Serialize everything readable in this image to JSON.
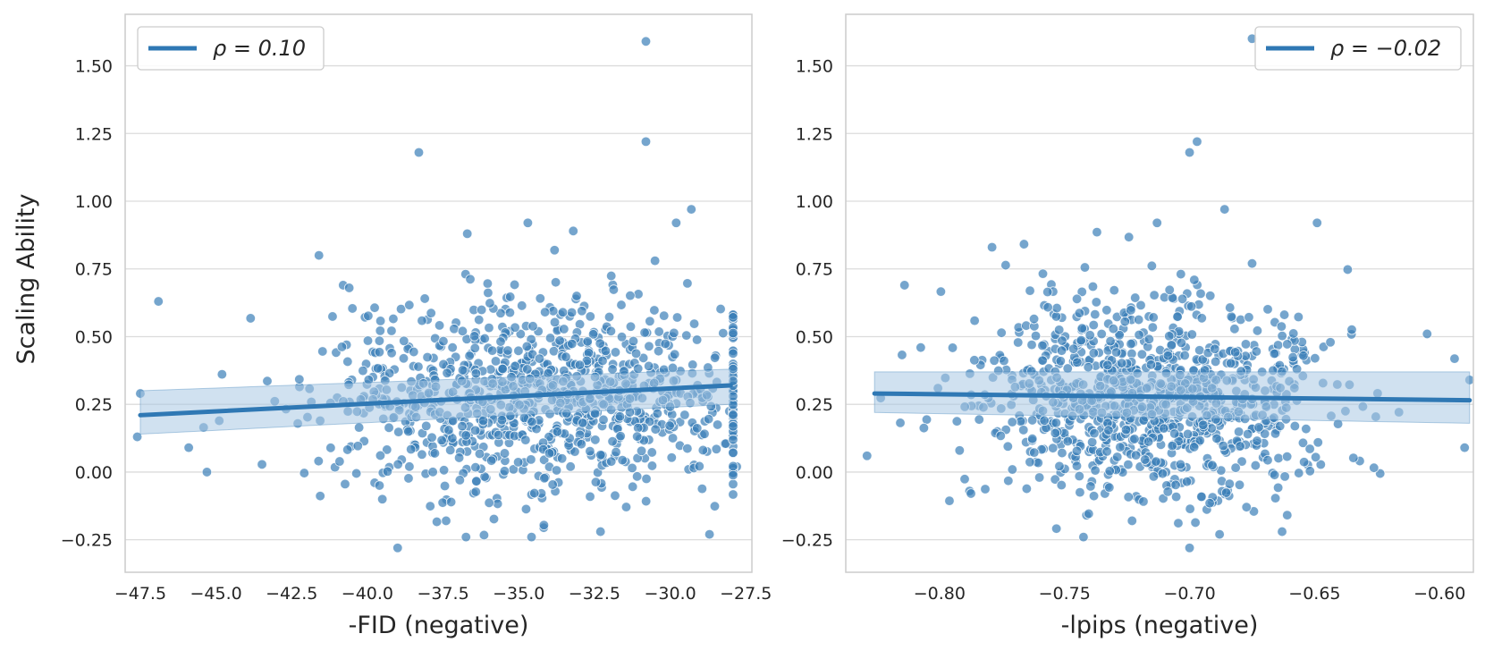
{
  "figure": {
    "ylabel": "Scaling Ability"
  },
  "colors": {
    "point": "#3a7fb8",
    "line": "#2f78b4",
    "band": "#a9c9e4",
    "grid": "#dcdcdc",
    "spine": "#cccccc"
  },
  "chart_data": [
    {
      "type": "scatter",
      "xlabel": "-FID (negative)",
      "ylabel": "Scaling Ability",
      "xlim": [
        -48.0,
        -27.3
      ],
      "ylim": [
        -0.37,
        1.69
      ],
      "xticks": [
        -47.5,
        -45.0,
        -42.5,
        -40.0,
        -37.5,
        -35.0,
        -32.5,
        -30.0,
        -27.5
      ],
      "xtick_labels": [
        "−47.5",
        "−45.0",
        "−42.5",
        "−40.0",
        "−37.5",
        "−35.0",
        "−32.5",
        "−30.0",
        "−27.5"
      ],
      "yticks": [
        -0.25,
        0.0,
        0.25,
        0.5,
        0.75,
        1.0,
        1.25,
        1.5
      ],
      "ytick_labels": [
        "−0.25",
        "0.00",
        "0.25",
        "0.50",
        "0.75",
        "1.00",
        "1.25",
        "1.50"
      ],
      "grid": true,
      "legend": {
        "label": "ρ = 0.10",
        "placement": "top-left"
      },
      "regression": {
        "x": [
          -47.5,
          -28.0
        ],
        "y": [
          0.21,
          0.32
        ]
      },
      "ci_band": {
        "x": [
          -47.5,
          -28.0
        ],
        "upper": [
          0.3,
          0.38
        ],
        "lower": [
          0.14,
          0.25
        ]
      },
      "distribution": {
        "x_center": -34.0,
        "x_spread": 3.8,
        "y_center": 0.27,
        "y_spread": 0.18,
        "count": 1000,
        "seed": 7
      },
      "points": [
        {
          "x": -30.8,
          "y": 1.59
        },
        {
          "x": -38.3,
          "y": 1.18
        },
        {
          "x": -30.8,
          "y": 1.22
        },
        {
          "x": -29.3,
          "y": 0.97
        },
        {
          "x": -29.8,
          "y": 0.92
        },
        {
          "x": -34.7,
          "y": 0.92
        },
        {
          "x": -33.2,
          "y": 0.89
        },
        {
          "x": -46.9,
          "y": 0.63
        },
        {
          "x": -41.6,
          "y": 0.8
        },
        {
          "x": -47.6,
          "y": 0.13
        },
        {
          "x": -47.5,
          "y": 0.29
        },
        {
          "x": -45.9,
          "y": 0.09
        },
        {
          "x": -45.3,
          "y": 0.0
        },
        {
          "x": -39.0,
          "y": -0.28
        },
        {
          "x": -37.4,
          "y": -0.18
        },
        {
          "x": -32.3,
          "y": -0.22
        },
        {
          "x": -28.7,
          "y": -0.23
        },
        {
          "x": -27.8,
          "y": 0.02
        },
        {
          "x": -27.9,
          "y": 0.5
        },
        {
          "x": -40.8,
          "y": 0.69
        },
        {
          "x": -40.6,
          "y": 0.68
        },
        {
          "x": -36.7,
          "y": 0.88
        },
        {
          "x": -30.5,
          "y": 0.78
        }
      ]
    },
    {
      "type": "scatter",
      "xlabel": "-lpips (negative)",
      "ylabel": "",
      "xlim": [
        -0.8375,
        -0.5865
      ],
      "ylim": [
        -0.37,
        1.69
      ],
      "xticks": [
        -0.8,
        -0.75,
        -0.7,
        -0.65,
        -0.6
      ],
      "xtick_labels": [
        "−0.80",
        "−0.75",
        "−0.70",
        "−0.65",
        "−0.60"
      ],
      "yticks": [
        -0.25,
        0.0,
        0.25,
        0.5,
        0.75,
        1.0,
        1.25,
        1.5
      ],
      "ytick_labels": [
        "−0.25",
        "0.00",
        "0.25",
        "0.50",
        "0.75",
        "1.00",
        "1.25",
        "1.50"
      ],
      "grid": true,
      "legend": {
        "label": "ρ = −0.02",
        "placement": "top-right"
      },
      "regression": {
        "x": [
          -0.826,
          -0.588
        ],
        "y": [
          0.29,
          0.265
        ]
      },
      "ci_band": {
        "x": [
          -0.826,
          -0.588
        ],
        "upper": [
          0.37,
          0.37
        ],
        "lower": [
          0.22,
          0.18
        ]
      },
      "distribution": {
        "x_center": -0.714,
        "x_spread": 0.035,
        "y_center": 0.27,
        "y_spread": 0.18,
        "count": 1000,
        "seed": 13
      },
      "points": [
        {
          "x": -0.675,
          "y": 1.6
        },
        {
          "x": -0.7,
          "y": 1.18
        },
        {
          "x": -0.697,
          "y": 1.22
        },
        {
          "x": -0.686,
          "y": 0.97
        },
        {
          "x": -0.713,
          "y": 0.92
        },
        {
          "x": -0.649,
          "y": 0.92
        },
        {
          "x": -0.814,
          "y": 0.69
        },
        {
          "x": -0.829,
          "y": 0.06
        },
        {
          "x": -0.605,
          "y": 0.51
        },
        {
          "x": -0.588,
          "y": 0.34
        },
        {
          "x": -0.59,
          "y": 0.09
        },
        {
          "x": -0.7,
          "y": -0.28
        },
        {
          "x": -0.723,
          "y": -0.18
        },
        {
          "x": -0.688,
          "y": -0.23
        },
        {
          "x": -0.663,
          "y": -0.22
        },
        {
          "x": -0.779,
          "y": 0.83
        },
        {
          "x": -0.675,
          "y": 0.77
        },
        {
          "x": -0.788,
          "y": -0.07
        }
      ]
    }
  ]
}
